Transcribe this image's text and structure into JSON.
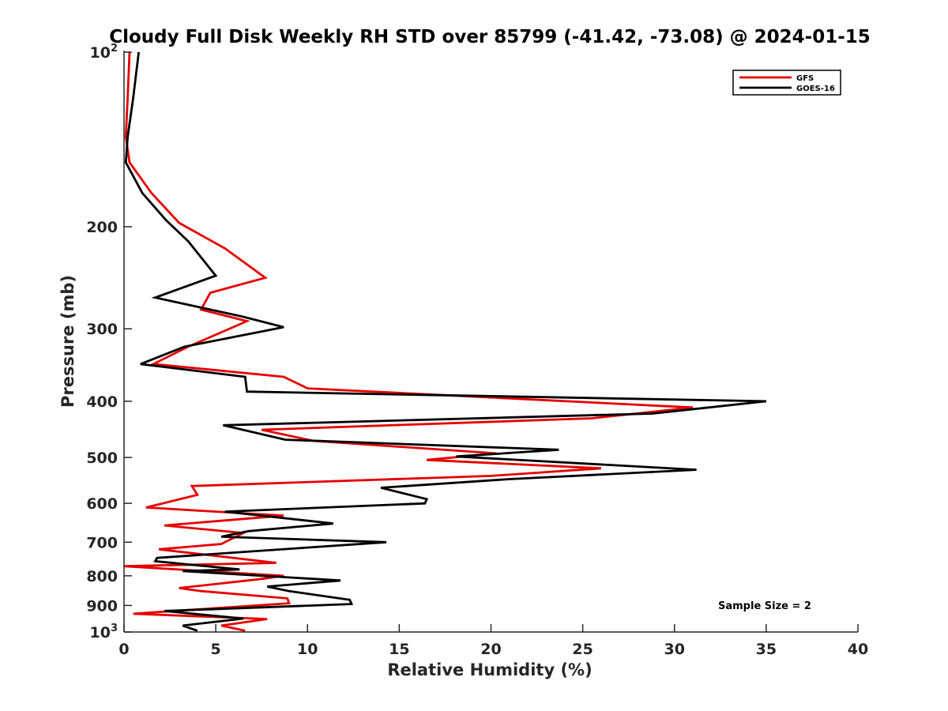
{
  "chart_data": {
    "type": "line",
    "title": "Cloudy Full Disk Weekly RH STD over 85799 (-41.42, -73.08) @ 2024-01-15",
    "xlabel": "Relative Humidity (%)",
    "ylabel": "Pressure (mb)",
    "xlim": [
      0,
      40
    ],
    "ylim": [
      100,
      1000
    ],
    "y_scale": "log",
    "y_reversed": true,
    "x_ticks": [
      0,
      5,
      10,
      15,
      20,
      25,
      30,
      35,
      40
    ],
    "y_ticks": [
      {
        "value": 100,
        "label": "10",
        "sup": "2"
      },
      {
        "value": 200,
        "label": "200"
      },
      {
        "value": 300,
        "label": "300"
      },
      {
        "value": 400,
        "label": "400"
      },
      {
        "value": 500,
        "label": "500"
      },
      {
        "value": 600,
        "label": "600"
      },
      {
        "value": 700,
        "label": "700"
      },
      {
        "value": 800,
        "label": "800"
      },
      {
        "value": 900,
        "label": "900"
      },
      {
        "value": 1000,
        "label": "10",
        "sup": "3"
      }
    ],
    "grid": false,
    "legend_position": "top-right",
    "series": [
      {
        "name": "GFS",
        "color": "#e60000",
        "points": [
          [
            0.3,
            100
          ],
          [
            0.2,
            120
          ],
          [
            0.1,
            140
          ],
          [
            0.3,
            155
          ],
          [
            1.5,
            175
          ],
          [
            3.0,
            197
          ],
          [
            5.5,
            218
          ],
          [
            7.7,
            245
          ],
          [
            4.7,
            260
          ],
          [
            4.2,
            278
          ],
          [
            6.7,
            291
          ],
          [
            3.5,
            322
          ],
          [
            1.6,
            345
          ],
          [
            8.7,
            363
          ],
          [
            10.0,
            380
          ],
          [
            31.0,
            410
          ],
          [
            25.5,
            428
          ],
          [
            7.5,
            448
          ],
          [
            10.3,
            468
          ],
          [
            20.3,
            492
          ],
          [
            16.5,
            505
          ],
          [
            26.0,
            522
          ],
          [
            20.0,
            538
          ],
          [
            3.7,
            560
          ],
          [
            4.0,
            580
          ],
          [
            1.2,
            610
          ],
          [
            8.7,
            630
          ],
          [
            2.2,
            655
          ],
          [
            6.5,
            675
          ],
          [
            5.5,
            700
          ],
          [
            5.3,
            705
          ],
          [
            1.9,
            720
          ],
          [
            8.3,
            760
          ],
          [
            0.0,
            770
          ],
          [
            8.7,
            800
          ],
          [
            7.5,
            810
          ],
          [
            3.0,
            840
          ],
          [
            4.2,
            850
          ],
          [
            8.9,
            875
          ],
          [
            9.0,
            892
          ],
          [
            0.5,
            930
          ],
          [
            7.8,
            950
          ],
          [
            5.3,
            975
          ],
          [
            6.6,
            995
          ]
        ]
      },
      {
        "name": "GOES-16",
        "color": "#000000",
        "points": [
          [
            0.8,
            100
          ],
          [
            0.5,
            120
          ],
          [
            0.2,
            140
          ],
          [
            0.1,
            155
          ],
          [
            1.0,
            175
          ],
          [
            2.3,
            195
          ],
          [
            3.5,
            212
          ],
          [
            5.0,
            243
          ],
          [
            1.7,
            265
          ],
          [
            6.5,
            286
          ],
          [
            8.7,
            298
          ],
          [
            3.3,
            322
          ],
          [
            0.9,
            345
          ],
          [
            6.6,
            363
          ],
          [
            6.7,
            385
          ],
          [
            35.0,
            400
          ],
          [
            28.8,
            420
          ],
          [
            5.4,
            440
          ],
          [
            8.8,
            466
          ],
          [
            23.7,
            485
          ],
          [
            18.1,
            498
          ],
          [
            31.2,
            525
          ],
          [
            21.0,
            545
          ],
          [
            14.0,
            564
          ],
          [
            16.5,
            590
          ],
          [
            16.4,
            600
          ],
          [
            5.5,
            620
          ],
          [
            11.4,
            650
          ],
          [
            6.8,
            670
          ],
          [
            5.3,
            685
          ],
          [
            14.3,
            700
          ],
          [
            10.0,
            715
          ],
          [
            1.8,
            745
          ],
          [
            1.7,
            755
          ],
          [
            6.3,
            780
          ],
          [
            3.2,
            785
          ],
          [
            11.8,
            815
          ],
          [
            7.8,
            835
          ],
          [
            9.0,
            850
          ],
          [
            12.3,
            880
          ],
          [
            12.4,
            895
          ],
          [
            2.2,
            920
          ],
          [
            6.5,
            948
          ],
          [
            3.2,
            975
          ],
          [
            4.0,
            995
          ]
        ]
      }
    ],
    "annotations": [
      {
        "text": "Sample Size = 2"
      }
    ]
  }
}
